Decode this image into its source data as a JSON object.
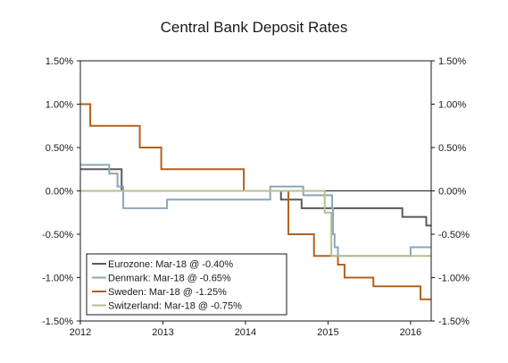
{
  "chart_data": {
    "type": "line",
    "title": "Central Bank Deposit Rates",
    "xlabel": "",
    "ylabel": "",
    "x_ticks": [
      "2012",
      "2013",
      "2014",
      "2015",
      "2016"
    ],
    "xlim": [
      2012.0,
      2016.25
    ],
    "ylim": [
      -1.5,
      1.5
    ],
    "y_ticks": [
      "1.50%",
      "1.00%",
      "0.50%",
      "0.00%",
      "-0.50%",
      "-1.00%",
      "-1.50%"
    ],
    "y_tick_values": [
      1.5,
      1.0,
      0.5,
      0.0,
      -0.5,
      -1.0,
      -1.5
    ],
    "grid": false,
    "zero_line": true,
    "legend_position": "bottom-left",
    "series": [
      {
        "name": "Eurozone: Mar-18 @ -0.40%",
        "color": "#5a5a5a",
        "step": true,
        "points": [
          [
            2012.0,
            0.25
          ],
          [
            2012.5,
            0.0
          ],
          [
            2014.43,
            -0.1
          ],
          [
            2014.68,
            -0.2
          ],
          [
            2015.9,
            -0.3
          ],
          [
            2016.19,
            -0.4
          ],
          [
            2016.25,
            -0.4
          ]
        ]
      },
      {
        "name": "Denmark: Mar-18 @ -0.65%",
        "color": "#8aa7b8",
        "step": true,
        "points": [
          [
            2012.0,
            0.3
          ],
          [
            2012.35,
            0.2
          ],
          [
            2012.45,
            0.05
          ],
          [
            2012.52,
            -0.2
          ],
          [
            2013.05,
            -0.1
          ],
          [
            2014.3,
            0.05
          ],
          [
            2014.7,
            -0.05
          ],
          [
            2015.05,
            -0.2
          ],
          [
            2015.06,
            -0.5
          ],
          [
            2015.08,
            -0.65
          ],
          [
            2015.12,
            -0.75
          ],
          [
            2016.0,
            -0.65
          ],
          [
            2016.25,
            -0.65
          ]
        ]
      },
      {
        "name": "Sweden: Mar-18 @ -1.25%",
        "color": "#b0621e",
        "step": true,
        "points": [
          [
            2012.0,
            1.0
          ],
          [
            2012.12,
            0.75
          ],
          [
            2012.72,
            0.5
          ],
          [
            2012.98,
            0.25
          ],
          [
            2013.98,
            0.0
          ],
          [
            2014.52,
            -0.5
          ],
          [
            2014.83,
            -0.75
          ],
          [
            2015.12,
            -0.85
          ],
          [
            2015.2,
            -1.0
          ],
          [
            2015.55,
            -1.1
          ],
          [
            2016.12,
            -1.25
          ],
          [
            2016.25,
            -1.25
          ]
        ]
      },
      {
        "name": "Switzerland: Mar-18 @ -0.75%",
        "color": "#b4bf8e",
        "step": true,
        "points": [
          [
            2012.0,
            0.0
          ],
          [
            2014.96,
            -0.25
          ],
          [
            2015.04,
            -0.75
          ],
          [
            2016.25,
            -0.75
          ]
        ]
      }
    ]
  }
}
